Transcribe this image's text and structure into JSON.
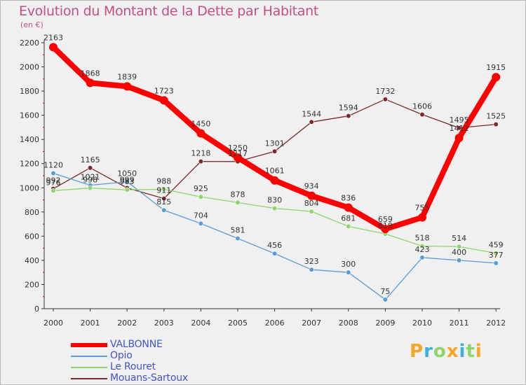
{
  "chart_data": {
    "type": "line",
    "title": "Evolution du Montant de la Dette par Habitant",
    "ylabel": "(en €)",
    "xlabel": "",
    "ylim": [
      0,
      2200
    ],
    "yticks": [
      "0",
      "200",
      "400",
      "600",
      "800",
      "1000",
      "1200",
      "1400",
      "1600",
      "1800",
      "2000",
      "2200"
    ],
    "categories": [
      "2000",
      "2001",
      "2002",
      "2003",
      "2004",
      "2005",
      "2006",
      "2007",
      "2008",
      "2009",
      "2010",
      "2011",
      "2012"
    ],
    "series": [
      {
        "name": "Mouans-Sartoux",
        "color": "#7a2a2a",
        "values": [
          992,
          1165,
          999,
          911,
          1218,
          1217,
          1301,
          1544,
          1594,
          1732,
          1606,
          1495,
          1525
        ],
        "labels": [
          "992",
          "1165",
          "999",
          "911",
          "1218",
          "1217",
          "1301",
          "1544",
          "1594",
          "1732",
          "1606",
          "1495",
          "1525"
        ]
      },
      {
        "name": "Opio",
        "color": "#5b9bd5",
        "values": [
          1120,
          1021,
          1050,
          815,
          704,
          581,
          456,
          323,
          300,
          75,
          423,
          400,
          377
        ],
        "labels": [
          "1120",
          "1021",
          "1050",
          "815",
          "704",
          "581",
          "456",
          "323",
          "300",
          "75",
          "423",
          "400",
          "377"
        ]
      },
      {
        "name": "Le Rouret",
        "color": "#8fd46b",
        "values": [
          976,
          998,
          983,
          988,
          925,
          878,
          830,
          804,
          681,
          619,
          518,
          514,
          459
        ],
        "labels": [
          "976",
          "998",
          "983",
          "988",
          "925",
          "878",
          "830",
          "804",
          "681",
          "619",
          "518",
          "514",
          "459"
        ]
      },
      {
        "name": "VALBONNE",
        "color": "#ff0000",
        "values": [
          2163,
          1868,
          1839,
          1723,
          1450,
          1250,
          1061,
          934,
          836,
          659,
          755,
          1412,
          1915
        ],
        "labels": [
          "2163",
          "1868",
          "1839",
          "1723",
          "1450",
          "1250",
          "1061",
          "934",
          "836",
          "659",
          "755",
          "1412",
          "1915"
        ]
      }
    ],
    "legend": [
      "VALBONNE",
      "Opio",
      "Le Rouret",
      "Mouans-Sartoux"
    ],
    "legend_position": "bottom-left",
    "grid": false
  },
  "logo": {
    "letters": [
      "P",
      "r",
      "o",
      "x",
      "i",
      "t",
      "i"
    ],
    "colors": [
      "#f5a623",
      "#3ab0e0",
      "#8fd46b",
      "#f5a623",
      "#3ab0e0",
      "#8fd46b",
      "#f5a623"
    ]
  },
  "colors": {
    "title": "#c44e85",
    "legend_text": "#4554c8"
  }
}
